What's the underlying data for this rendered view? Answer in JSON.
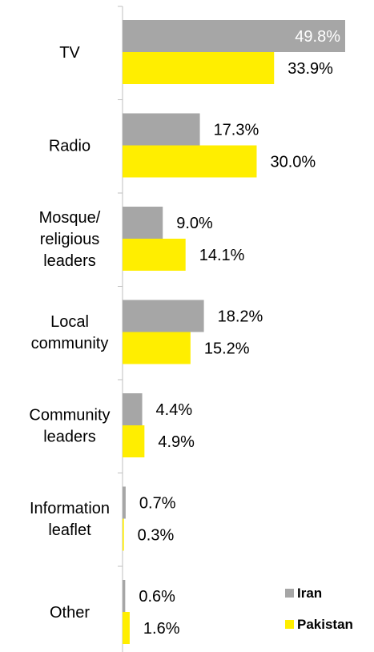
{
  "chart_data": {
    "type": "bar",
    "orientation": "horizontal",
    "categories": [
      [
        "TV"
      ],
      [
        "Radio"
      ],
      [
        "Mosque/",
        "religious",
        "leaders"
      ],
      [
        "Local",
        "community"
      ],
      [
        "Community",
        "leaders"
      ],
      [
        "Information",
        "leaflet"
      ],
      [
        "Other"
      ]
    ],
    "series": [
      {
        "name": "Iran",
        "color": "#a6a6a6",
        "values": [
          49.8,
          17.3,
          9.0,
          18.2,
          4.4,
          0.7,
          0.6
        ],
        "labels": [
          "49.8%",
          "17.3%",
          "9.0%",
          "18.2%",
          "4.4%",
          "0.7%",
          "0.6%"
        ]
      },
      {
        "name": "Pakistan",
        "color": "#ffee00",
        "values": [
          33.9,
          30.0,
          14.1,
          15.2,
          4.9,
          0.3,
          1.6
        ],
        "labels": [
          "33.9%",
          "30.0%",
          "14.1%",
          "15.2%",
          "4.9%",
          "0.3%",
          "1.6%"
        ]
      }
    ],
    "xlim": [
      0,
      50
    ],
    "grid": false,
    "legend_position": "bottom-right"
  }
}
